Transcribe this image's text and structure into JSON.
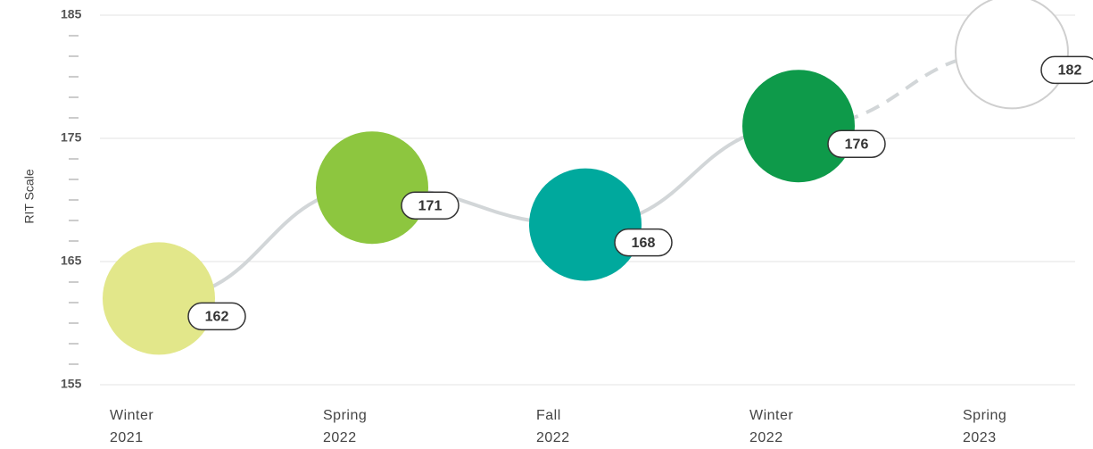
{
  "chart_data": {
    "type": "bubble-line",
    "y_label": "RIT Scale",
    "categories": [
      [
        "Winter",
        "2021"
      ],
      [
        "Spring",
        "2022"
      ],
      [
        "Fall",
        "2022"
      ],
      [
        "Winter",
        "2022"
      ],
      [
        "Spring",
        "2023"
      ]
    ],
    "values": [
      162,
      171,
      168,
      176,
      182
    ],
    "colors": [
      "#e2e78a",
      "#8dc63f",
      "#00a99d",
      "#0e9a4a",
      "#ffffff"
    ],
    "projected": [
      false,
      false,
      false,
      false,
      true
    ],
    "ylim": [
      155,
      185
    ],
    "yticks": [
      155,
      165,
      175,
      185
    ],
    "minor_ticks_per_interval": 5,
    "grid": true
  }
}
